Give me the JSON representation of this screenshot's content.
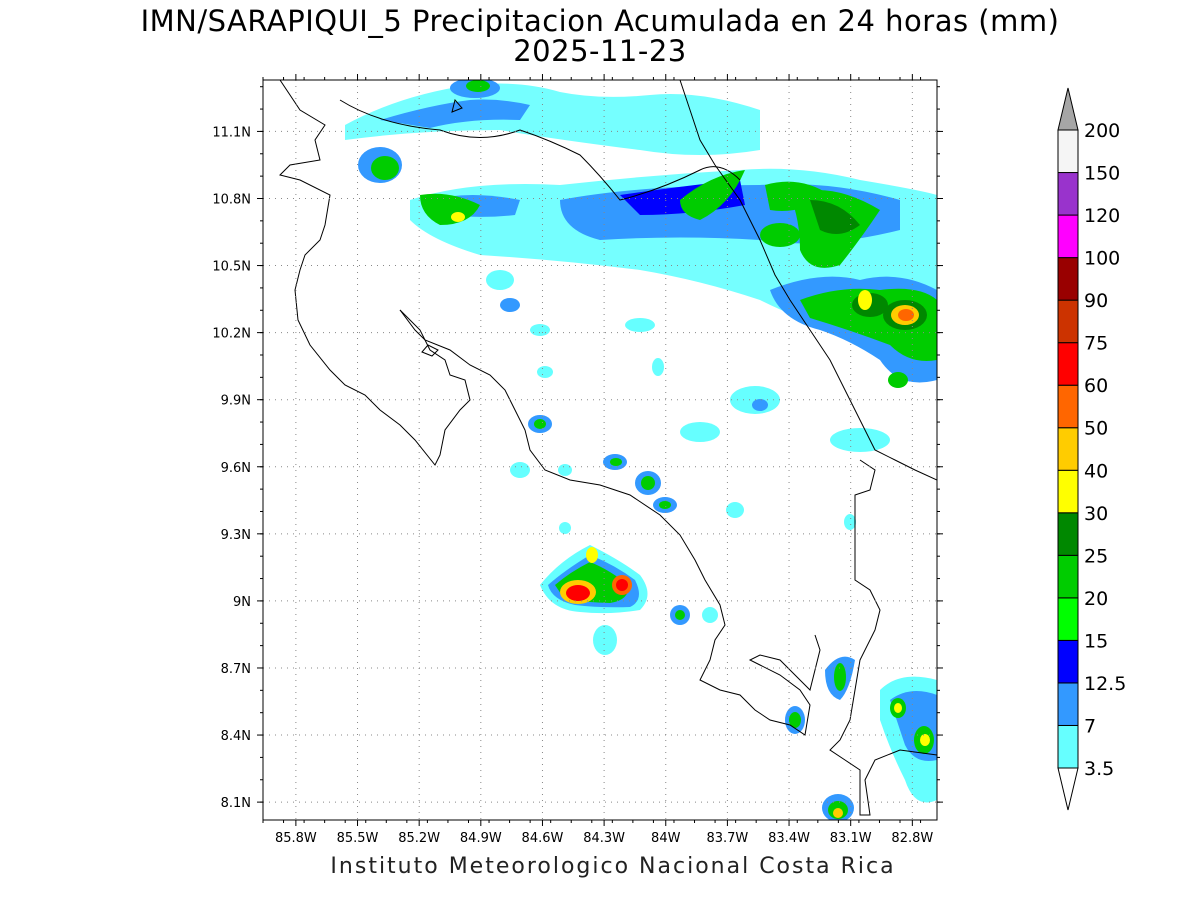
{
  "title": {
    "line1": "IMN/SARAPIQUI_5 Precipitacion Acumulada en 24 horas (mm)",
    "line2": "2025-11-23"
  },
  "credit": "Instituto Meteorologico Nacional Costa Rica",
  "map": {
    "lon_range": [
      -85.96,
      -82.68
    ],
    "lat_range": [
      8.02,
      11.33
    ],
    "lon_ticks": [
      "85.8W",
      "85.5W",
      "85.2W",
      "84.9W",
      "84.6W",
      "84.3W",
      "84W",
      "83.7W",
      "83.4W",
      "83.1W",
      "82.8W"
    ],
    "lat_ticks": [
      "11.1N",
      "10.8N",
      "10.5N",
      "10.2N",
      "9.9N",
      "9.6N",
      "9.3N",
      "9N",
      "8.7N",
      "8.4N",
      "8.1N"
    ]
  },
  "colorbar": {
    "labels": [
      "3.5",
      "7",
      "12.5",
      "15",
      "20",
      "25",
      "30",
      "40",
      "50",
      "60",
      "75",
      "90",
      "100",
      "120",
      "150",
      "200"
    ],
    "colors": [
      "#66ffff",
      "#3399ff",
      "#0000ff",
      "#00ff00",
      "#00cc00",
      "#008800",
      "#ffff00",
      "#ffcc00",
      "#ff6600",
      "#ff0000",
      "#cc3300",
      "#990000",
      "#ff00ff",
      "#9933cc",
      "#f5f5f5"
    ],
    "extend_max_color": "#a6a6a6",
    "extend_min_color": "#ffffff"
  },
  "precip_palette": {
    "light": "#66ffff",
    "moderate": "#3399ff",
    "heavy": "#0000ff",
    "very_heavy": "#00ff00",
    "intense": "#00cc00",
    "very_intense": "#008800",
    "yellow": "#ffff00",
    "orange": "#ffcc00",
    "red": "#ff0000"
  }
}
